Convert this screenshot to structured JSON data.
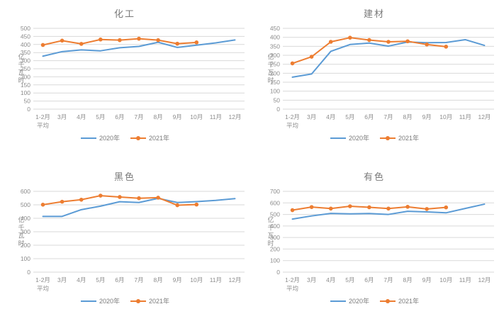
{
  "colors": {
    "series_2020": "#5B9BD5",
    "series_2021": "#ED7D31",
    "gridline": "#D9D9D9",
    "tick_text": "#8C8C8C",
    "title_text": "#7A7A7A"
  },
  "ylabel": "亿千瓦时",
  "x_categories": [
    "1-2月",
    "3月",
    "4月",
    "5月",
    "6月",
    "7月",
    "8月",
    "9月",
    "10月",
    "11月",
    "12月"
  ],
  "x_first_category_line2": "平均",
  "chart_data": [
    {
      "type": "line",
      "title": "化工",
      "ylabel": "亿千瓦时",
      "ylim": [
        0,
        500
      ],
      "ytick_step": 50,
      "grid": true,
      "legend_position": "bottom",
      "categories": [
        "1-2月平均",
        "3月",
        "4月",
        "5月",
        "6月",
        "7月",
        "8月",
        "9月",
        "10月",
        "11月",
        "12月"
      ],
      "series": [
        {
          "name": "2020年",
          "color": "#5B9BD5",
          "marker": "none",
          "values": [
            328,
            356,
            367,
            361,
            380,
            388,
            414,
            382,
            396,
            410,
            428
          ]
        },
        {
          "name": "2021年",
          "color": "#ED7D31",
          "marker": "circle",
          "values": [
            397,
            424,
            404,
            431,
            427,
            436,
            427,
            405,
            413
          ]
        }
      ]
    },
    {
      "type": "line",
      "title": "建材",
      "ylabel": "亿千瓦时",
      "ylim": [
        0,
        450
      ],
      "ytick_step": 50,
      "grid": true,
      "legend_position": "bottom",
      "categories": [
        "1-2月平均",
        "3月",
        "4月",
        "5月",
        "6月",
        "7月",
        "8月",
        "9月",
        "10月",
        "11月",
        "12月"
      ],
      "series": [
        {
          "name": "2020年",
          "color": "#5B9BD5",
          "marker": "none",
          "values": [
            178,
            196,
            322,
            360,
            368,
            351,
            374,
            370,
            371,
            387,
            355
          ]
        },
        {
          "name": "2021年",
          "color": "#ED7D31",
          "marker": "circle",
          "values": [
            255,
            292,
            375,
            398,
            385,
            375,
            378,
            360,
            348
          ]
        }
      ]
    },
    {
      "type": "line",
      "title": "黑色",
      "ylabel": "亿千瓦时",
      "ylim": [
        0,
        600
      ],
      "ytick_step": 100,
      "grid": true,
      "legend_position": "bottom",
      "categories": [
        "1-2月平均",
        "3月",
        "4月",
        "5月",
        "6月",
        "7月",
        "8月",
        "9月",
        "10月",
        "11月",
        "12月"
      ],
      "series": [
        {
          "name": "2020年",
          "color": "#5B9BD5",
          "marker": "none",
          "values": [
            414,
            414,
            464,
            490,
            523,
            517,
            548,
            517,
            524,
            533,
            546
          ]
        },
        {
          "name": "2021年",
          "color": "#ED7D31",
          "marker": "circle",
          "values": [
            501,
            523,
            538,
            568,
            558,
            549,
            553,
            497,
            502
          ]
        }
      ]
    },
    {
      "type": "line",
      "title": "有色",
      "ylabel": "亿千瓦时",
      "ylim": [
        0,
        700
      ],
      "ytick_step": 100,
      "grid": true,
      "legend_position": "bottom",
      "categories": [
        "1-2月平均",
        "3月",
        "4月",
        "5月",
        "6月",
        "7月",
        "8月",
        "9月",
        "10月",
        "11月",
        "12月"
      ],
      "series": [
        {
          "name": "2020年",
          "color": "#5B9BD5",
          "marker": "none",
          "values": [
            460,
            487,
            509,
            505,
            508,
            500,
            527,
            522,
            514,
            552,
            589
          ]
        },
        {
          "name": "2021年",
          "color": "#ED7D31",
          "marker": "circle",
          "values": [
            537,
            564,
            551,
            571,
            562,
            551,
            566,
            547,
            561
          ]
        }
      ]
    }
  ]
}
